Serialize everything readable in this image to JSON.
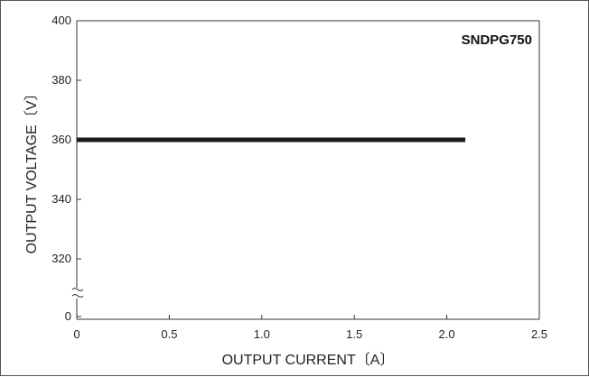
{
  "chart_data": {
    "type": "line",
    "title": "",
    "annotation": "SNDPG750",
    "xlabel": "OUTPUT CURRENT〔A〕",
    "ylabel": "OUTPUT VOLTAGE〔V〕",
    "xlim": [
      0,
      2.5
    ],
    "x_ticks": [
      "0",
      "0.5",
      "1.0",
      "1.5",
      "2.0",
      "2.5"
    ],
    "x_tick_values": [
      0,
      0.5,
      1.0,
      1.5,
      2.0,
      2.5
    ],
    "ylim": [
      300,
      400
    ],
    "y_axis_break": "between 0 and 300",
    "y_ticks": [
      "0",
      "320",
      "340",
      "360",
      "380",
      "400"
    ],
    "y_tick_values": [
      300,
      320,
      340,
      360,
      380,
      400
    ],
    "grid": false,
    "series": [
      {
        "x": [
          0,
          2.1
        ],
        "y": [
          360,
          360
        ],
        "color": "#1a1a1a"
      }
    ]
  }
}
